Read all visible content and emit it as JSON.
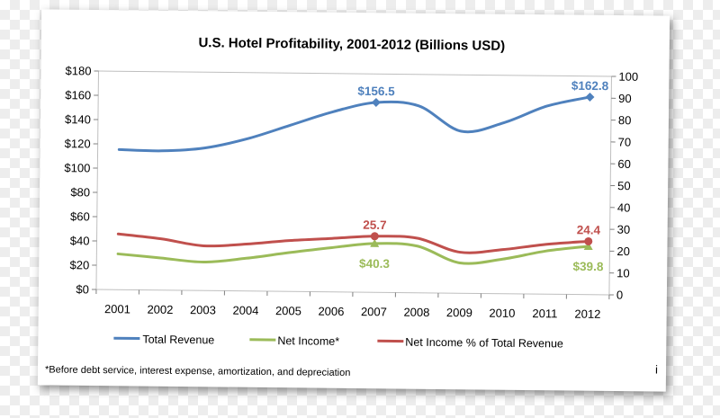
{
  "chart_data": {
    "type": "line",
    "title": "U.S. Hotel Profitability, 2001-2012 (Billions USD)",
    "categories": [
      "2001",
      "2002",
      "2003",
      "2004",
      "2005",
      "2006",
      "2007",
      "2008",
      "2009",
      "2010",
      "2011",
      "2012"
    ],
    "left_axis": {
      "range": [
        0,
        180
      ],
      "ticks": [
        0,
        20,
        40,
        60,
        80,
        100,
        120,
        140,
        160,
        180
      ],
      "tick_labels": [
        "$0",
        "$20",
        "$40",
        "$60",
        "$80",
        "$100",
        "$120",
        "$140",
        "$160",
        "$180"
      ]
    },
    "right_axis": {
      "range": [
        0,
        100
      ],
      "ticks": [
        0,
        10,
        20,
        30,
        40,
        50,
        60,
        70,
        80,
        90,
        100
      ],
      "tick_labels": [
        "0",
        "10",
        "20",
        "30",
        "40",
        "50",
        "60",
        "70",
        "80",
        "90",
        "100"
      ]
    },
    "series": [
      {
        "name": "Total Revenue",
        "axis": "left",
        "color": "#4f81bd",
        "marker": "diamond",
        "values": [
          115.5,
          114.8,
          117.5,
          125.5,
          137,
          148.5,
          156.5,
          154,
          133.5,
          141,
          155,
          162.8
        ]
      },
      {
        "name": "Net Income*",
        "axis": "left",
        "color": "#9bbb59",
        "marker": "triangle",
        "values": [
          29.5,
          26.5,
          23.5,
          27,
          32,
          36.5,
          40.3,
          38.5,
          25,
          28.5,
          35.5,
          39.8
        ]
      },
      {
        "name": "Net Income % of Total Revenue",
        "axis": "right",
        "color": "#c0504d",
        "marker": "circle",
        "values": [
          25.5,
          23.5,
          20.5,
          21.5,
          23.3,
          24.5,
          25.7,
          25,
          18.8,
          20.2,
          22.8,
          24.4
        ]
      }
    ],
    "data_labels": [
      {
        "series": 0,
        "index": 6,
        "text": "$156.5"
      },
      {
        "series": 0,
        "index": 11,
        "text": "$162.8"
      },
      {
        "series": 1,
        "index": 6,
        "text": "$40.3"
      },
      {
        "series": 1,
        "index": 11,
        "text": "$39.8"
      },
      {
        "series": 2,
        "index": 6,
        "text": "25.7"
      },
      {
        "series": 2,
        "index": 11,
        "text": "24.4"
      }
    ],
    "legend_position": "bottom",
    "footnote": "*Before debt service, interest expense, amortization, and depreciation",
    "corner_mark": "i"
  }
}
